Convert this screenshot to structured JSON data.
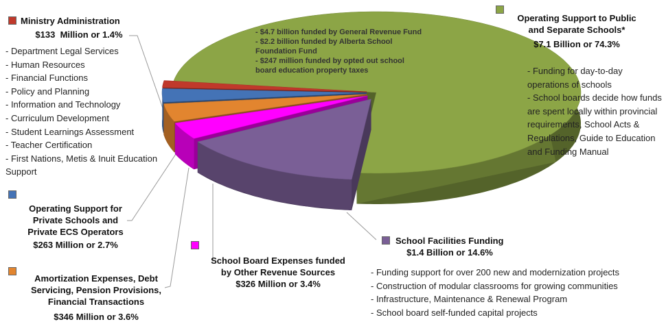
{
  "chart_data": {
    "type": "pie",
    "categories": [
      "Operating Support to Public and Separate Schools*",
      "School Facilities Funding",
      "School Board Expenses funded by Other Revenue Sources",
      "Amortization Expenses, Debt Servicing, Pension Provisions, Financial Transactions",
      "Operating Support for Private Schools and Private ECS Operators",
      "Ministry Administration"
    ],
    "values": [
      74.3,
      14.6,
      3.4,
      3.6,
      2.7,
      1.4
    ],
    "value_labels": [
      "$7.1 Billion or 74.3%",
      "$1.4 Billion or 14.6%",
      "$326 Million or 3.4%",
      "$346 Million or 3.6%",
      "$263 Million or 2.7%",
      "$133  Million or 1.4%"
    ],
    "colors": [
      "#8ca546",
      "#7a5f96",
      "#ff00ff",
      "#e2852f",
      "#4473b6",
      "#c0392b"
    ],
    "notes": [
      [
        "- Funding for day-to-day operations of schools",
        "- School boards decide how funds are spent locally within provincial requirements, School Acts & Regulations, Guide to Education and Funding Manual"
      ],
      [
        "- Funding support for over 200 new and modernization projects",
        "- Construction of modular classrooms for growing communities",
        "- Infrastructure, Maintenance & Renewal Program",
        "- School board self-funded capital projects"
      ],
      [],
      [],
      [],
      [
        "- Department Legal Services",
        "- Human Resources",
        "- Financial Functions",
        "- Policy and Planning",
        "- Information and Technology",
        "- Curriculum Development",
        "- Student Learnings Assessment",
        "- Teacher Certification",
        "- First Nations, Metis & Inuit Education Support"
      ]
    ],
    "annotation": [
      "- $4.7 billion funded by General Revenue Fund",
      "- $2.2 billion funded by Alberta School Foundation Fund",
      "- $247 million funded by opted out school board education property taxes"
    ]
  }
}
